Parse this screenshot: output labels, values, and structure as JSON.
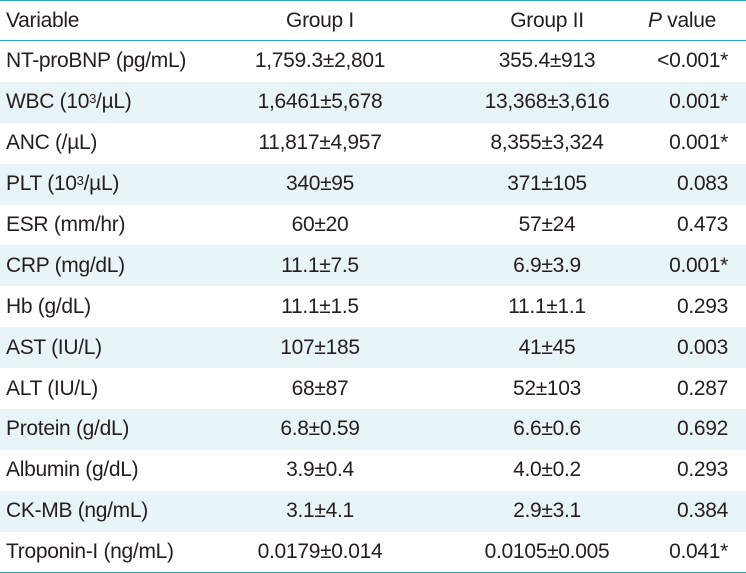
{
  "header": {
    "variable": "Variable",
    "group1": "Group I",
    "group2": "Group II",
    "pvalue_italic": "P",
    "pvalue_rest": " value"
  },
  "rows": [
    {
      "variable": "NT-proBNP (pg/mL)",
      "group1": "1,759.3±2,801",
      "group2": "355.4±913",
      "p": "<0.001*"
    },
    {
      "variable_pre": "WBC (10",
      "variable_sup": "3",
      "variable_post": "/µL)",
      "group1": "1,6461±5,678",
      "group2": "13,368±3,616",
      "p": "0.001*"
    },
    {
      "variable": "ANC (/µL)",
      "group1": "11,817±4,957",
      "group2": "8,355±3,324",
      "p": "0.001*"
    },
    {
      "variable_pre": "PLT (10",
      "variable_sup": "3",
      "variable_post": "/µL)",
      "group1": "340±95",
      "group2": "371±105",
      "p": "0.083"
    },
    {
      "variable": "ESR (mm/hr)",
      "group1": "60±20",
      "group2": "57±24",
      "p": "0.473"
    },
    {
      "variable": "CRP (mg/dL)",
      "group1": "11.1±7.5",
      "group2": "6.9±3.9",
      "p": "0.001*"
    },
    {
      "variable": "Hb (g/dL)",
      "group1": "11.1±1.5",
      "group2": "11.1±1.1",
      "p": "0.293"
    },
    {
      "variable": "AST (IU/L)",
      "group1": "107±185",
      "group2": "41±45",
      "p": "0.003"
    },
    {
      "variable": "ALT (IU/L)",
      "group1": "68±87",
      "group2": "52±103",
      "p": "0.287"
    },
    {
      "variable": "Protein (g/dL)",
      "group1": "6.8±0.59",
      "group2": "6.6±0.6",
      "p": "0.692"
    },
    {
      "variable": "Albumin (g/dL)",
      "group1": "3.9±0.4",
      "group2": "4.0±0.2",
      "p": "0.293"
    },
    {
      "variable": "CK-MB (ng/mL)",
      "group1": "3.1±4.1",
      "group2": "2.9±3.1",
      "p": "0.384"
    },
    {
      "variable": "Troponin-I (ng/mL)",
      "group1": "0.0179±0.014",
      "group2": "0.0105±0.005",
      "p": "0.041*"
    }
  ]
}
